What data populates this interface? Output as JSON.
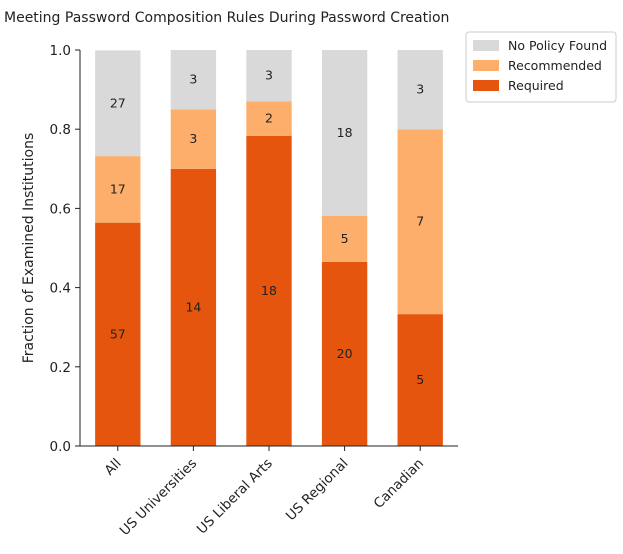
{
  "chart_data": {
    "type": "bar",
    "stacked": true,
    "title": "Meeting Password Composition Rules During Password Creation",
    "xlabel": "",
    "ylabel": "Fraction of Examined Institutions",
    "ylim": [
      0,
      1.0
    ],
    "yticks": [
      "0.0",
      "0.2",
      "0.4",
      "0.6",
      "0.8",
      "1.0"
    ],
    "categories": [
      "All",
      "US Universities",
      "US Liberal Arts",
      "US Regional",
      "Canadian"
    ],
    "series": [
      {
        "name": "Required",
        "color": "#e6550d",
        "counts": [
          57,
          14,
          18,
          20,
          5
        ],
        "values": [
          0.564,
          0.7,
          0.783,
          0.465,
          0.333
        ]
      },
      {
        "name": "Recommended",
        "color": "#fdae6b",
        "counts": [
          17,
          3,
          2,
          5,
          7
        ],
        "values": [
          0.168,
          0.15,
          0.087,
          0.116,
          0.467
        ]
      },
      {
        "name": "No Policy Found",
        "color": "#d9d9d9",
        "counts": [
          27,
          3,
          3,
          18,
          3
        ],
        "values": [
          0.267,
          0.15,
          0.13,
          0.419,
          0.2
        ]
      }
    ],
    "legend": {
      "placement": "top-right outside",
      "order": [
        "No Policy Found",
        "Recommended",
        "Required"
      ]
    }
  }
}
